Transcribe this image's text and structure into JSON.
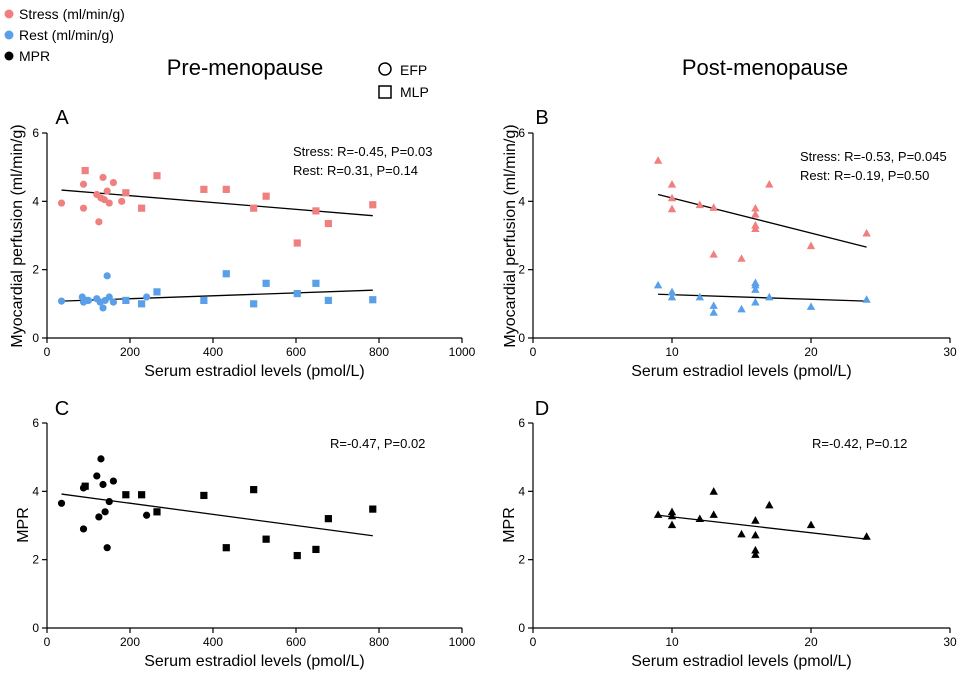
{
  "legend": {
    "stress": "Stress (ml/min/g)",
    "rest": "Rest (ml/min/g)",
    "mpr": "MPR",
    "efp": "EFP",
    "mlp": "MLP"
  },
  "headers": {
    "pre": "Pre-menopause",
    "post": "Post-menopause"
  },
  "colors": {
    "stress": "#f08080",
    "rest": "#5aa0e8",
    "mpr": "#000000"
  },
  "chart_data": [
    {
      "type": "scatter",
      "panel": "A",
      "xlabel": "Serum estradiol levels (pmol/L)",
      "ylabel": "Myocardial perfusion (ml/min/g)",
      "xlim": [
        0,
        1000
      ],
      "ylim": [
        0,
        6
      ],
      "xticks": [
        0,
        200,
        400,
        600,
        800,
        1000
      ],
      "yticks": [
        0,
        2,
        4,
        6
      ],
      "annotations": [
        "Stress: R=-0.45, P=0.03",
        "Rest: R=0.31, P=0.14"
      ],
      "series": [
        {
          "name": "Stress (ml/min/g)",
          "group": "EFP",
          "marker": "circle",
          "color": "stress",
          "points": [
            [
              35,
              3.95
            ],
            [
              88,
              4.5
            ],
            [
              88,
              3.8
            ],
            [
              120,
              4.2
            ],
            [
              125,
              3.4
            ],
            [
              130,
              4.1
            ],
            [
              135,
              4.7
            ],
            [
              138,
              4.05
            ],
            [
              145,
              4.3
            ],
            [
              150,
              3.95
            ],
            [
              160,
              4.55
            ],
            [
              180,
              4.0
            ]
          ]
        },
        {
          "name": "Stress (ml/min/g)",
          "group": "MLP",
          "marker": "square",
          "color": "stress",
          "points": [
            [
              92,
              4.9
            ],
            [
              190,
              4.25
            ],
            [
              228,
              3.8
            ],
            [
              265,
              4.75
            ],
            [
              378,
              4.35
            ],
            [
              432,
              4.35
            ],
            [
              498,
              3.8
            ],
            [
              528,
              4.15
            ],
            [
              603,
              2.78
            ],
            [
              648,
              3.72
            ],
            [
              678,
              3.35
            ],
            [
              785,
              3.9
            ]
          ]
        },
        {
          "name": "Rest (ml/min/g)",
          "group": "EFP",
          "marker": "circle",
          "color": "rest",
          "points": [
            [
              35,
              1.08
            ],
            [
              85,
              1.2
            ],
            [
              88,
              1.05
            ],
            [
              100,
              1.1
            ],
            [
              120,
              1.15
            ],
            [
              128,
              1.05
            ],
            [
              135,
              0.88
            ],
            [
              140,
              1.1
            ],
            [
              145,
              1.82
            ],
            [
              150,
              1.2
            ],
            [
              160,
              1.05
            ],
            [
              240,
              1.2
            ]
          ]
        },
        {
          "name": "Rest (ml/min/g)",
          "group": "MLP",
          "marker": "square",
          "color": "rest",
          "points": [
            [
              92,
              1.1
            ],
            [
              190,
              1.1
            ],
            [
              228,
              1.0
            ],
            [
              265,
              1.35
            ],
            [
              378,
              1.1
            ],
            [
              432,
              1.88
            ],
            [
              498,
              1.0
            ],
            [
              528,
              1.6
            ],
            [
              603,
              1.3
            ],
            [
              648,
              1.6
            ],
            [
              678,
              1.1
            ],
            [
              785,
              1.12
            ]
          ]
        }
      ],
      "fit_lines": [
        {
          "color": "#000000",
          "x": [
            35,
            785
          ],
          "y": [
            4.33,
            3.58
          ]
        },
        {
          "color": "#000000",
          "x": [
            35,
            785
          ],
          "y": [
            1.08,
            1.4
          ]
        }
      ]
    },
    {
      "type": "scatter",
      "panel": "B",
      "xlabel": "Serum estradiol levels (pmol/L)",
      "ylabel": "Myocardial perfusion (ml/min/g)",
      "xlim": [
        0,
        30
      ],
      "ylim": [
        0,
        6
      ],
      "xticks": [
        0,
        10,
        20,
        30
      ],
      "yticks": [
        0,
        2,
        4,
        6
      ],
      "annotations": [
        "Stress: R=-0.53, P=0.045",
        "Rest: R=-0.19, P=0.50"
      ],
      "series": [
        {
          "name": "Stress (ml/min/g)",
          "group": "",
          "marker": "triangle",
          "color": "stress",
          "points": [
            [
              9,
              5.2
            ],
            [
              10,
              4.5
            ],
            [
              10,
              4.1
            ],
            [
              10,
              3.78
            ],
            [
              12,
              3.9
            ],
            [
              13,
              3.82
            ],
            [
              13,
              2.45
            ],
            [
              15,
              2.33
            ],
            [
              16,
              3.8
            ],
            [
              16,
              3.62
            ],
            [
              16,
              3.3
            ],
            [
              16,
              3.2
            ],
            [
              17,
              4.5
            ],
            [
              20,
              2.7
            ],
            [
              24,
              3.07
            ]
          ]
        },
        {
          "name": "Rest (ml/min/g)",
          "group": "",
          "marker": "triangle",
          "color": "rest",
          "points": [
            [
              9,
              1.55
            ],
            [
              10,
              1.35
            ],
            [
              10,
              1.2
            ],
            [
              12,
              1.2
            ],
            [
              13,
              0.95
            ],
            [
              13,
              0.75
            ],
            [
              15,
              0.85
            ],
            [
              16,
              1.62
            ],
            [
              16,
              1.55
            ],
            [
              16,
              1.42
            ],
            [
              16,
              1.05
            ],
            [
              17,
              1.2
            ],
            [
              20,
              0.92
            ],
            [
              24,
              1.13
            ]
          ]
        }
      ],
      "fit_lines": [
        {
          "color": "#000000",
          "x": [
            9,
            24
          ],
          "y": [
            4.2,
            2.66
          ]
        },
        {
          "color": "#000000",
          "x": [
            9,
            24
          ],
          "y": [
            1.28,
            1.08
          ]
        }
      ]
    },
    {
      "type": "scatter",
      "panel": "C",
      "xlabel": "Serum estradiol levels (pmol/L)",
      "ylabel": "MPR",
      "xlim": [
        0,
        1000
      ],
      "ylim": [
        0,
        6
      ],
      "xticks": [
        0,
        200,
        400,
        600,
        800,
        1000
      ],
      "yticks": [
        0,
        2,
        4,
        6
      ],
      "annotations": [
        "R=-0.47, P=0.02"
      ],
      "series": [
        {
          "name": "MPR",
          "group": "EFP",
          "marker": "circle",
          "color": "mpr",
          "points": [
            [
              35,
              3.65
            ],
            [
              88,
              2.9
            ],
            [
              88,
              4.1
            ],
            [
              120,
              4.45
            ],
            [
              125,
              3.25
            ],
            [
              130,
              4.95
            ],
            [
              135,
              4.2
            ],
            [
              140,
              3.4
            ],
            [
              145,
              2.35
            ],
            [
              150,
              3.7
            ],
            [
              160,
              4.3
            ],
            [
              240,
              3.3
            ]
          ]
        },
        {
          "name": "MPR",
          "group": "MLP",
          "marker": "square",
          "color": "mpr",
          "points": [
            [
              92,
              4.15
            ],
            [
              190,
              3.9
            ],
            [
              228,
              3.9
            ],
            [
              265,
              3.4
            ],
            [
              378,
              3.88
            ],
            [
              432,
              2.35
            ],
            [
              498,
              4.05
            ],
            [
              528,
              2.6
            ],
            [
              603,
              2.12
            ],
            [
              648,
              2.3
            ],
            [
              678,
              3.2
            ],
            [
              785,
              3.48
            ]
          ]
        }
      ],
      "fit_lines": [
        {
          "color": "#000000",
          "x": [
            35,
            785
          ],
          "y": [
            3.92,
            2.7
          ]
        }
      ]
    },
    {
      "type": "scatter",
      "panel": "D",
      "xlabel": "Serum estradiol levels (pmol/L)",
      "ylabel": "MPR",
      "xlim": [
        0,
        30
      ],
      "ylim": [
        0,
        6
      ],
      "xticks": [
        0,
        10,
        20,
        30
      ],
      "yticks": [
        0,
        2,
        4,
        6
      ],
      "annotations": [
        "R=-0.42, P=0.12"
      ],
      "series": [
        {
          "name": "MPR",
          "group": "",
          "marker": "triangle",
          "color": "mpr",
          "points": [
            [
              9,
              3.32
            ],
            [
              10,
              3.4
            ],
            [
              10,
              3.28
            ],
            [
              10,
              3.02
            ],
            [
              12,
              3.2
            ],
            [
              13,
              4.0
            ],
            [
              13,
              3.32
            ],
            [
              15,
              2.75
            ],
            [
              16,
              3.15
            ],
            [
              16,
              2.72
            ],
            [
              16,
              2.28
            ],
            [
              16,
              2.15
            ],
            [
              17,
              3.6
            ],
            [
              20,
              3.02
            ],
            [
              24,
              2.68
            ]
          ]
        }
      ],
      "fit_lines": [
        {
          "color": "#000000",
          "x": [
            9,
            24
          ],
          "y": [
            3.3,
            2.6
          ]
        }
      ]
    }
  ]
}
